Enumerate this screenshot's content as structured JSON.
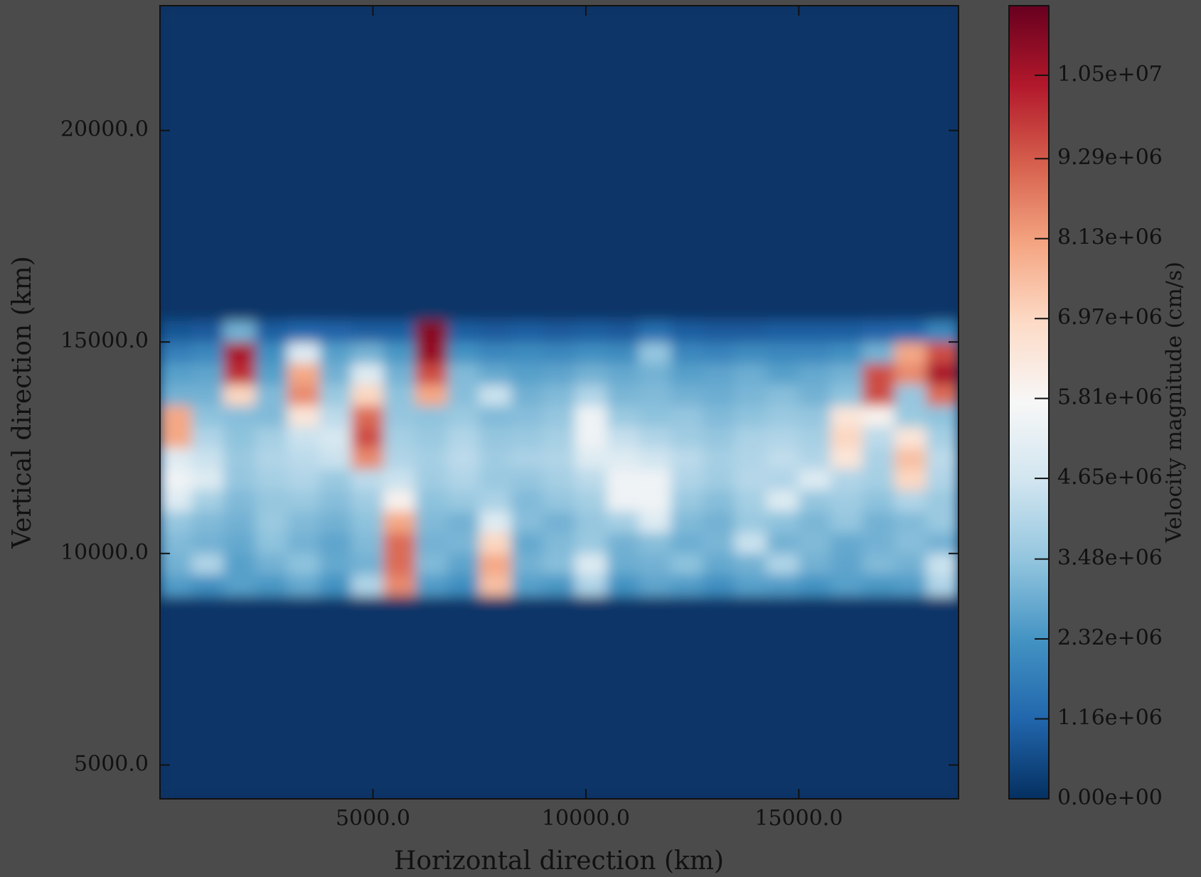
{
  "chart_data": {
    "type": "heatmap",
    "xlabel": "Horizontal direction (km)",
    "ylabel": "Vertical direction (km)",
    "colorbar_label": "Velocity magnitude (cm/s)",
    "xlim": [
      0,
      18750
    ],
    "ylim": [
      4200,
      22950
    ],
    "xticks": [
      {
        "value": 5000,
        "label": "5000.0"
      },
      {
        "value": 10000,
        "label": "10000.0"
      },
      {
        "value": 15000,
        "label": "15000.0"
      }
    ],
    "yticks": [
      {
        "value": 5000,
        "label": "5000.0"
      },
      {
        "value": 10000,
        "label": "10000.0"
      },
      {
        "value": 15000,
        "label": "15000.0"
      },
      {
        "value": 20000,
        "label": "20000.0"
      }
    ],
    "clim": [
      0,
      11510000
    ],
    "cticks": [
      {
        "value": 0,
        "label": "0.00e+00"
      },
      {
        "value": 1160000,
        "label": "1.16e+06"
      },
      {
        "value": 2320000,
        "label": "2.32e+06"
      },
      {
        "value": 3480000,
        "label": "3.48e+06"
      },
      {
        "value": 4650000,
        "label": "4.65e+06"
      },
      {
        "value": 5810000,
        "label": "5.81e+06"
      },
      {
        "value": 6970000,
        "label": "6.97e+06"
      },
      {
        "value": 8130000,
        "label": "8.13e+06"
      },
      {
        "value": 9290000,
        "label": "9.29e+06"
      },
      {
        "value": 10500000,
        "label": "1.05e+07"
      }
    ],
    "colormap": [
      "#053061",
      "#2166ac",
      "#4393c3",
      "#92c5de",
      "#d1e5f0",
      "#f7f7f7",
      "#fddbc7",
      "#f4a582",
      "#d6604d",
      "#b2182b",
      "#67001f"
    ],
    "xbins": [
      0,
      750,
      1500,
      2250,
      3000,
      3750,
      4500,
      5250,
      6000,
      6750,
      7500,
      8250,
      9000,
      9750,
      10500,
      11250,
      12000,
      12750,
      13500,
      14250,
      15000,
      15750,
      16500,
      17250,
      18000,
      18750
    ],
    "ybins": [
      4200,
      9000,
      9500,
      10000,
      10500,
      11000,
      11500,
      12000,
      12500,
      13000,
      13500,
      14000,
      14500,
      15000,
      15500,
      22950
    ],
    "values": [
      [
        100000.0,
        100000.0,
        100000.0,
        100000.0,
        100000.0,
        100000.0,
        100000.0,
        100000.0,
        100000.0,
        100000.0,
        100000.0,
        100000.0,
        100000.0,
        100000.0,
        100000.0,
        100000.0,
        100000.0,
        100000.0,
        100000.0,
        100000.0,
        100000.0,
        100000.0,
        100000.0,
        100000.0,
        100000.0
      ],
      [
        2500000.0,
        2200000.0,
        2600000.0,
        2400000.0,
        2800000.0,
        2300000.0,
        4000000.0,
        8500000.0,
        2500000.0,
        2200000.0,
        7500000.0,
        2600000.0,
        2400000.0,
        4000000.0,
        2300000.0,
        2700000.0,
        2500000.0,
        2200000.0,
        2600000.0,
        2500000.0,
        2300000.0,
        2600000.0,
        2400000.0,
        2500000.0,
        4000000.0
      ],
      [
        3000000.0,
        4000000.0,
        2600000.0,
        3000000.0,
        3400000.0,
        2800000.0,
        3000000.0,
        9000000.0,
        3200000.0,
        2700000.0,
        8000000.0,
        3000000.0,
        3300000.0,
        5000000.0,
        2900000.0,
        3000000.0,
        3400000.0,
        2800000.0,
        3000000.0,
        4000000.0,
        3000000.0,
        2700000.0,
        3200000.0,
        3000000.0,
        4500000.0
      ],
      [
        3200000.0,
        3000000.0,
        2800000.0,
        3400000.0,
        3000000.0,
        2700000.0,
        3200000.0,
        9000000.0,
        3000000.0,
        3100000.0,
        7000000.0,
        2800000.0,
        3200000.0,
        3600000.0,
        3000000.0,
        3300000.0,
        2900000.0,
        3100000.0,
        4500000.0,
        3000000.0,
        3200000.0,
        2800000.0,
        3000000.0,
        3300000.0,
        3000000.0
      ],
      [
        3500000.0,
        3200000.0,
        3000000.0,
        3600000.0,
        3200000.0,
        3000000.0,
        3400000.0,
        8000000.0,
        3200000.0,
        3000000.0,
        5000000.0,
        3300000.0,
        3000000.0,
        3500000.0,
        3800000.0,
        5000000.0,
        3200000.0,
        3000000.0,
        3600000.0,
        3400000.0,
        3100000.0,
        3500000.0,
        3000000.0,
        3200000.0,
        3600000.0
      ],
      [
        5000000.0,
        3800000.0,
        3200000.0,
        3500000.0,
        3600000.0,
        3300000.0,
        3700000.0,
        6000000.0,
        3400000.0,
        3600000.0,
        3900000.0,
        3200000.0,
        3500000.0,
        3800000.0,
        5500000.0,
        5500000.0,
        3600000.0,
        3300000.0,
        3800000.0,
        5000000.0,
        3500000.0,
        3700000.0,
        3400000.0,
        4000000.0,
        3600000.0
      ],
      [
        5500000.0,
        5000000.0,
        3500000.0,
        3800000.0,
        4000000.0,
        3600000.0,
        4200000.0,
        4500000.0,
        3700000.0,
        4000000.0,
        3600000.0,
        3500000.0,
        3800000.0,
        4200000.0,
        5500000.0,
        5500000.0,
        4000000.0,
        3700000.0,
        4100000.0,
        4000000.0,
        5000000.0,
        4000000.0,
        3800000.0,
        7000000.0,
        4000000.0
      ],
      [
        5000000.0,
        4500000.0,
        3600000.0,
        4000000.0,
        4200000.0,
        4500000.0,
        8500000.0,
        4000000.0,
        3800000.0,
        4200000.0,
        3700000.0,
        3900000.0,
        4000000.0,
        5000000.0,
        5000000.0,
        4600000.0,
        4200000.0,
        3800000.0,
        4000000.0,
        4300000.0,
        4000000.0,
        6500000.0,
        3900000.0,
        7500000.0,
        4200000.0
      ],
      [
        8000000.0,
        4000000.0,
        3400000.0,
        3800000.0,
        4500000.0,
        4800000.0,
        9500000.0,
        3800000.0,
        3600000.0,
        4000000.0,
        3500000.0,
        3600000.0,
        3800000.0,
        5500000.0,
        4400000.0,
        4000000.0,
        3700000.0,
        3500000.0,
        3900000.0,
        4000000.0,
        3800000.0,
        7000000.0,
        4200000.0,
        6500000.0,
        3800000.0
      ],
      [
        8000000.0,
        3400000.0,
        3300000.0,
        3200000.0,
        6500000.0,
        4200000.0,
        9000000.0,
        3500000.0,
        3400000.0,
        3600000.0,
        3200000.0,
        3300000.0,
        3500000.0,
        5500000.0,
        3600000.0,
        3400000.0,
        3500000.0,
        3200000.0,
        3400000.0,
        3600000.0,
        3500000.0,
        6500000.0,
        6000000.0,
        3600000.0,
        3400000.0
      ],
      [
        3000000.0,
        3000000.0,
        7000000.0,
        3200000.0,
        8500000.0,
        3600000.0,
        7000000.0,
        3400000.0,
        8000000.0,
        3300000.0,
        4500000.0,
        3000000.0,
        3200000.0,
        4000000.0,
        3100000.0,
        3200000.0,
        3000000.0,
        2900000.0,
        3100000.0,
        3300000.0,
        3000000.0,
        3400000.0,
        9500000.0,
        3500000.0,
        9000000.0
      ],
      [
        2600000.0,
        2700000.0,
        10000000.0,
        2600000.0,
        8000000.0,
        3000000.0,
        5000000.0,
        3000000.0,
        9500000.0,
        3200000.0,
        2800000.0,
        2600000.0,
        2700000.0,
        3000000.0,
        2800000.0,
        3000000.0,
        2600000.0,
        2700000.0,
        2900000.0,
        2600000.0,
        2800000.0,
        3000000.0,
        9500000.0,
        8500000.0,
        10500000.0
      ],
      [
        1800000.0,
        2000000.0,
        10500000.0,
        2200000.0,
        5000000.0,
        2600000.0,
        3000000.0,
        2400000.0,
        10800000.0,
        2300000.0,
        2000000.0,
        2100000.0,
        2000000.0,
        2200000.0,
        2100000.0,
        3500000.0,
        2000000.0,
        1900000.0,
        2100000.0,
        2000000.0,
        2000000.0,
        2200000.0,
        3000000.0,
        8000000.0,
        9500000.0
      ],
      [
        800000.0,
        900000.0,
        3000000.0,
        1000000.0,
        1200000.0,
        1100000.0,
        1000000.0,
        1000000.0,
        11000000.0,
        1000000.0,
        900000.0,
        1000000.0,
        900000.0,
        1000000.0,
        900000.0,
        1400000.0,
        1000000.0,
        900000.0,
        900000.0,
        1000000.0,
        1000000.0,
        1000000.0,
        1100000.0,
        1200000.0,
        2000000.0
      ],
      [
        100000.0,
        100000.0,
        100000.0,
        100000.0,
        100000.0,
        100000.0,
        100000.0,
        100000.0,
        100000.0,
        100000.0,
        100000.0,
        100000.0,
        100000.0,
        100000.0,
        100000.0,
        100000.0,
        100000.0,
        100000.0,
        100000.0,
        100000.0,
        100000.0,
        100000.0,
        100000.0,
        100000.0,
        100000.0
      ]
    ]
  }
}
